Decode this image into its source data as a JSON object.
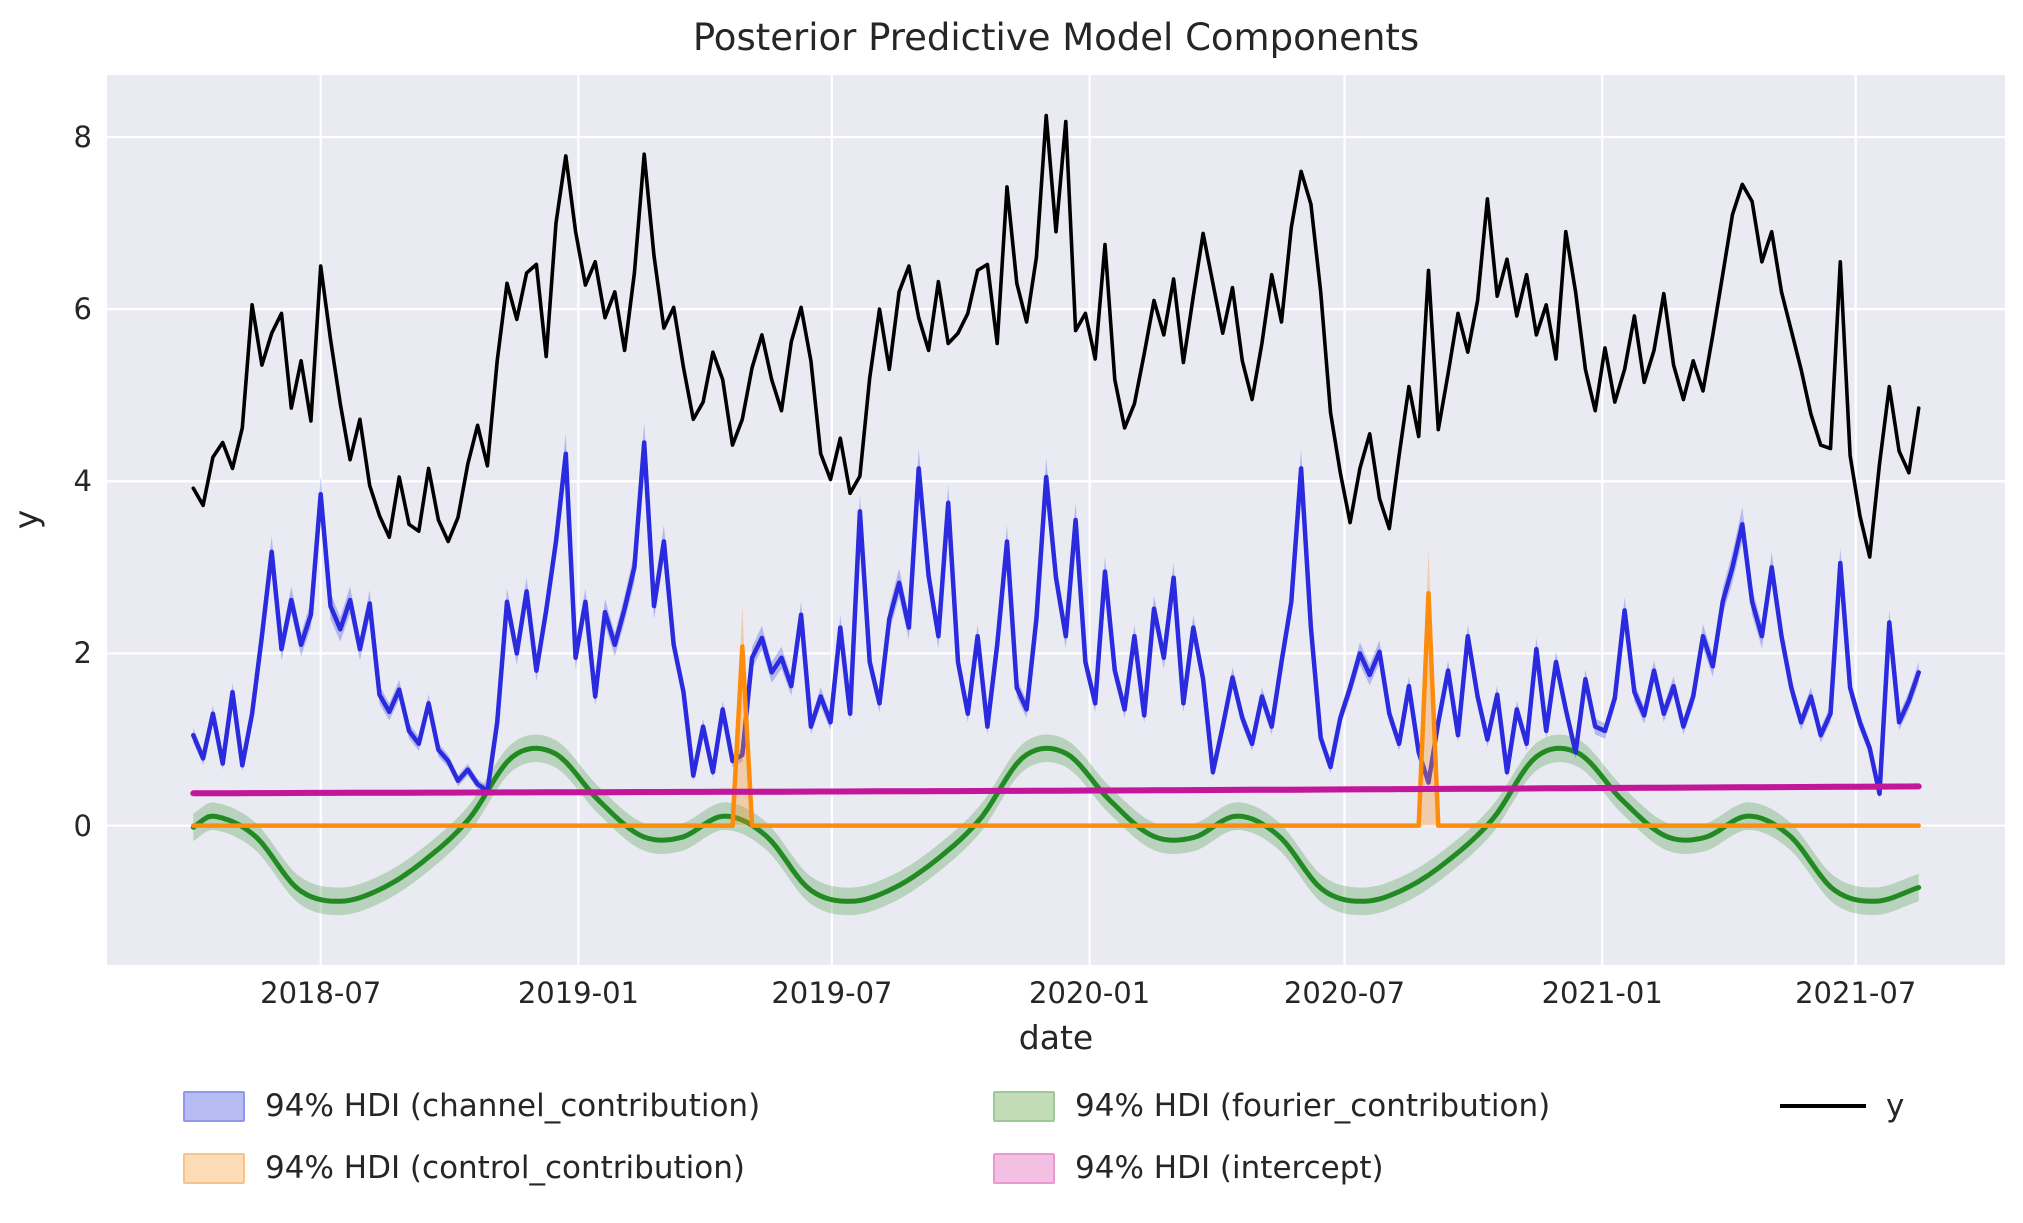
{
  "chart_data": {
    "type": "line",
    "title": "Posterior Predictive Model Components",
    "xlabel": "date",
    "ylabel": "y",
    "x_unit": "days since 2018-01-01",
    "x_start_date": "2018-04-01",
    "x_step": "7 days (weekly observations)",
    "xlim": [
      28.4,
      1383.6
    ],
    "ylim": [
      -1.62,
      8.72
    ],
    "grid": true,
    "plot_background": "#eaeaf2",
    "grid_color": "#ffffff",
    "y_ticks": [
      0,
      2,
      4,
      6,
      8
    ],
    "x_ticks": [
      {
        "label": "2018-07",
        "day": 181
      },
      {
        "label": "2019-01",
        "day": 365
      },
      {
        "label": "2019-07",
        "day": 546
      },
      {
        "label": "2020-01",
        "day": 730
      },
      {
        "label": "2020-07",
        "day": 912
      },
      {
        "label": "2021-01",
        "day": 1096
      },
      {
        "label": "2021-07",
        "day": 1277
      }
    ],
    "series": {
      "y": {
        "name": "y",
        "color": "#000000",
        "line_width": 3.6,
        "x_start_day": 90,
        "x_step_days": 7,
        "values": [
          3.92,
          3.72,
          4.28,
          4.45,
          4.15,
          4.62,
          6.05,
          5.35,
          5.72,
          5.95,
          4.85,
          5.4,
          4.7,
          6.5,
          5.65,
          4.9,
          4.25,
          4.72,
          3.95,
          3.6,
          3.35,
          4.05,
          3.5,
          3.42,
          4.15,
          3.55,
          3.3,
          3.58,
          4.2,
          4.65,
          4.18,
          5.4,
          6.3,
          5.88,
          6.42,
          6.52,
          5.45,
          7.0,
          7.78,
          6.9,
          6.28,
          6.55,
          5.9,
          6.2,
          5.52,
          6.42,
          7.8,
          6.62,
          5.78,
          6.02,
          5.32,
          4.72,
          4.92,
          5.5,
          5.18,
          4.42,
          4.72,
          5.32,
          5.7,
          5.18,
          4.82,
          5.62,
          6.02,
          5.4,
          4.32,
          4.02,
          4.5,
          3.86,
          4.06,
          5.2,
          6.0,
          5.3,
          6.2,
          6.5,
          5.9,
          5.52,
          6.32,
          5.6,
          5.72,
          5.95,
          6.45,
          6.52,
          5.6,
          7.42,
          6.3,
          5.85,
          6.6,
          8.25,
          6.9,
          8.18,
          5.75,
          5.95,
          5.42,
          6.75,
          5.18,
          4.62,
          4.9,
          5.48,
          6.1,
          5.7,
          6.35,
          5.38,
          6.15,
          6.88,
          6.3,
          5.72,
          6.25,
          5.4,
          4.95,
          5.6,
          6.4,
          5.85,
          6.95,
          7.6,
          7.22,
          6.2,
          4.8,
          4.1,
          3.52,
          4.15,
          4.55,
          3.8,
          3.45,
          4.3,
          5.1,
          4.52,
          6.45,
          4.6,
          5.25,
          5.95,
          5.5,
          6.1,
          7.28,
          6.15,
          6.58,
          5.92,
          6.4,
          5.7,
          6.05,
          5.42,
          6.9,
          6.2,
          5.3,
          4.82,
          5.55,
          4.92,
          5.3,
          5.92,
          5.15,
          5.52,
          6.18,
          5.35,
          4.95,
          5.4,
          5.05,
          5.7,
          6.4,
          7.1,
          7.45,
          7.25,
          6.55,
          6.9,
          6.2,
          5.75,
          5.3,
          4.78,
          4.42,
          4.38,
          6.55,
          4.3,
          3.6,
          3.12,
          4.2,
          5.1,
          4.35,
          4.1,
          4.85
        ]
      },
      "channel_contribution": {
        "name": "94% HDI (channel_contribution)",
        "color": "#2a2ade",
        "band_color": "rgba(70,80,225,0.33)",
        "line_width": 4.5,
        "hdi": "94%",
        "band_halfwidth_rule": {
          "base": 0.04,
          "factor": 0.045
        },
        "x_start_day": 90,
        "x_step_days": 7,
        "values": [
          1.05,
          0.78,
          1.3,
          0.72,
          1.55,
          0.7,
          1.3,
          2.2,
          3.18,
          2.05,
          2.62,
          2.1,
          2.45,
          3.85,
          2.55,
          2.28,
          2.62,
          2.05,
          2.58,
          1.52,
          1.32,
          1.58,
          1.1,
          0.95,
          1.42,
          0.88,
          0.75,
          0.52,
          0.65,
          0.48,
          0.4,
          1.2,
          2.6,
          2.0,
          2.72,
          1.8,
          2.5,
          3.3,
          4.32,
          1.95,
          2.6,
          1.5,
          2.48,
          2.1,
          2.52,
          3.0,
          4.45,
          2.55,
          3.3,
          2.1,
          1.55,
          0.58,
          1.15,
          0.62,
          1.35,
          0.75,
          0.82,
          1.95,
          2.18,
          1.78,
          1.95,
          1.62,
          2.45,
          1.15,
          1.5,
          1.2,
          2.3,
          1.3,
          3.65,
          1.9,
          1.42,
          2.4,
          2.82,
          2.3,
          4.15,
          2.9,
          2.2,
          3.75,
          1.9,
          1.3,
          2.2,
          1.15,
          2.1,
          3.3,
          1.6,
          1.35,
          2.4,
          4.05,
          2.88,
          2.2,
          3.55,
          1.9,
          1.42,
          2.95,
          1.8,
          1.35,
          2.2,
          1.28,
          2.52,
          1.95,
          2.88,
          1.42,
          2.3,
          1.7,
          0.62,
          1.15,
          1.72,
          1.25,
          0.95,
          1.5,
          1.15,
          1.9,
          2.6,
          4.15,
          2.3,
          1.02,
          0.68,
          1.25,
          1.6,
          2.0,
          1.75,
          2.02,
          1.3,
          0.95,
          1.62,
          0.85,
          0.5,
          1.2,
          1.8,
          1.05,
          2.2,
          1.5,
          1.0,
          1.52,
          0.62,
          1.35,
          0.95,
          2.05,
          1.1,
          1.9,
          1.35,
          0.85,
          1.7,
          1.15,
          1.1,
          1.48,
          2.5,
          1.55,
          1.28,
          1.8,
          1.3,
          1.62,
          1.15,
          1.5,
          2.2,
          1.85,
          2.6,
          3.0,
          3.5,
          2.6,
          2.2,
          3.0,
          2.2,
          1.6,
          1.2,
          1.5,
          1.05,
          1.3,
          3.05,
          1.6,
          1.2,
          0.9,
          0.37,
          2.36,
          1.2,
          1.45,
          1.78
        ]
      },
      "fourier_contribution": {
        "name": "94% HDI (fourier_contribution)",
        "color": "#218a21",
        "band_color": "rgba(34,139,34,0.25)",
        "line_width": 5,
        "hdi": "94%",
        "band_halfwidth": 0.16,
        "shape": "yearly seasonality, peak ~0.86 mid-Nov/Dec, trough ~-0.88 Jun-Jul, small Feb dip and Apr bump",
        "anchor_days": [
          90,
          104,
          134,
          165,
          195,
          226,
          257,
          287,
          318,
          348,
          379,
          410,
          438,
          469,
          499,
          530,
          560,
          591,
          622,
          652,
          683,
          713,
          744,
          775,
          804,
          835,
          865,
          896,
          926,
          957,
          988,
          1018,
          1049,
          1079,
          1110,
          1141,
          1169,
          1200,
          1230,
          1261,
          1291,
          1322
        ],
        "anchor_values": [
          -0.02,
          0.11,
          -0.12,
          -0.74,
          -0.88,
          -0.72,
          -0.38,
          0.08,
          0.8,
          0.84,
          0.3,
          -0.12,
          -0.14,
          0.11,
          -0.12,
          -0.74,
          -0.88,
          -0.72,
          -0.38,
          0.08,
          0.8,
          0.84,
          0.3,
          -0.12,
          -0.14,
          0.11,
          -0.12,
          -0.74,
          -0.88,
          -0.72,
          -0.38,
          0.08,
          0.8,
          0.84,
          0.3,
          -0.12,
          -0.14,
          0.11,
          -0.12,
          -0.74,
          -0.88,
          -0.72
        ]
      },
      "control_contribution": {
        "name": "94% HDI (control_contribution)",
        "color": "#fd8c0d",
        "band_color": "rgba(255,150,40,0.35)",
        "line_width": 4.5,
        "hdi": "94%",
        "baseline": 0.0,
        "spikes": [
          {
            "day": 482,
            "approx_date": "2019-04-28",
            "peak": 2.08,
            "band_top": 2.55
          },
          {
            "day": 972,
            "approx_date": "2020-08-30",
            "peak": 2.7,
            "band_top": 3.22
          }
        ]
      },
      "intercept": {
        "name": "94% HDI (intercept)",
        "color": "#c2169b",
        "band_color": "rgba(205,30,150,0.30)",
        "line_width": 6,
        "hdi": "94%",
        "band_halfwidth": 0.035,
        "anchor_days": [
          90,
          706,
          1322
        ],
        "anchor_values": [
          0.375,
          0.405,
          0.455
        ]
      }
    }
  },
  "legend": {
    "items": [
      {
        "label": "94% HDI (channel_contribution)",
        "type": "patch",
        "fill": "#b7bdf3",
        "edge": "#8f97ee"
      },
      {
        "label": "94% HDI (control_contribution)",
        "type": "patch",
        "fill": "#fcdcb6",
        "edge": "#f8c28d"
      },
      {
        "label": "94% HDI (fourier_contribution)",
        "type": "patch",
        "fill": "#c2dcb8",
        "edge": "#9fc898"
      },
      {
        "label": "94% HDI (intercept)",
        "type": "patch",
        "fill": "#f3bfe3",
        "edge": "#eb97d1"
      },
      {
        "label": "y",
        "type": "line",
        "color": "#000000"
      }
    ]
  }
}
